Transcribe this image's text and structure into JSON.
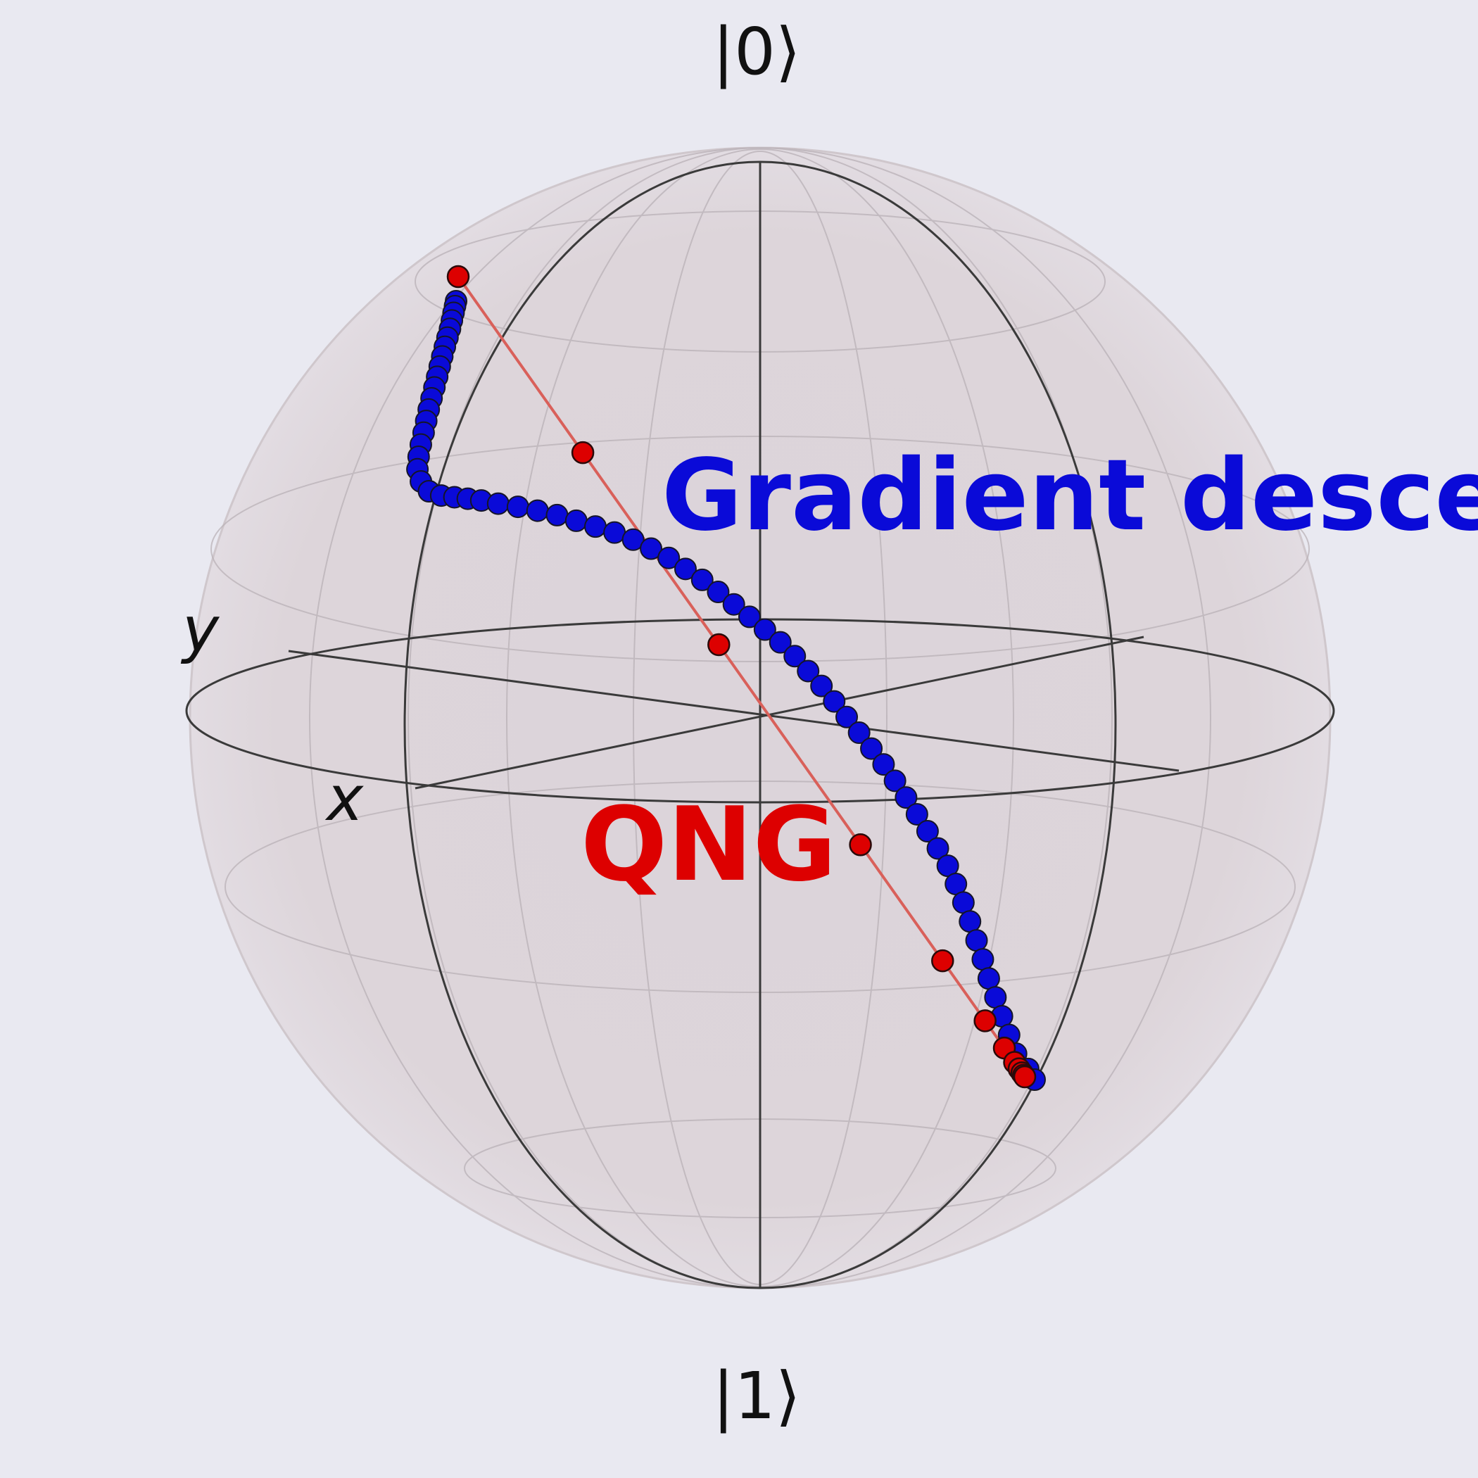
{
  "labels": {
    "ket0": "|0⟩",
    "ket1": "|1⟩",
    "x_axis": "x",
    "y_axis": "y"
  },
  "series": {
    "gradient_descent": {
      "label": "Gradient descent",
      "color": "#0a0ad8",
      "line_color": "#3a48d8",
      "point_count": 68
    },
    "qng": {
      "label": "QNG",
      "color": "#dd0000",
      "line_color": "#d9605a",
      "point_count": 12
    }
  },
  "colors": {
    "background": "#e9e9f1",
    "sphere_fill": "#ddd4da",
    "wire": "#000000"
  }
}
